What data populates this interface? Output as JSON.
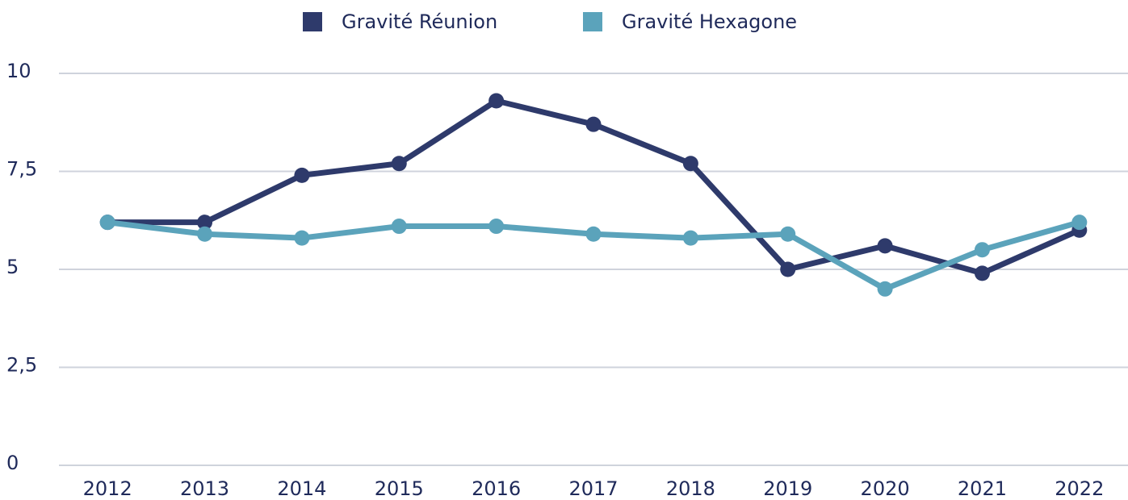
{
  "chart_data": {
    "type": "line",
    "categories": [
      "2012",
      "2013",
      "2014",
      "2015",
      "2016",
      "2017",
      "2018",
      "2019",
      "2020",
      "2021",
      "2022"
    ],
    "series": [
      {
        "name": "Gravité Réunion",
        "color": "#2e3a6b",
        "values": [
          6.2,
          6.2,
          7.4,
          7.7,
          9.3,
          8.7,
          7.7,
          5.0,
          5.6,
          4.9,
          6.0
        ]
      },
      {
        "name": "Gravité Hexagone",
        "color": "#5ba3bb",
        "values": [
          6.2,
          5.9,
          5.8,
          6.1,
          6.1,
          5.9,
          5.8,
          5.9,
          4.5,
          5.5,
          6.2
        ]
      }
    ],
    "ylim": [
      0,
      10
    ],
    "yticks": [
      0,
      {
        "value": 2.5,
        "label": "2,5"
      },
      5,
      {
        "value": 7.5,
        "label": "7,5"
      },
      10
    ],
    "grid": true,
    "legend": "top"
  }
}
